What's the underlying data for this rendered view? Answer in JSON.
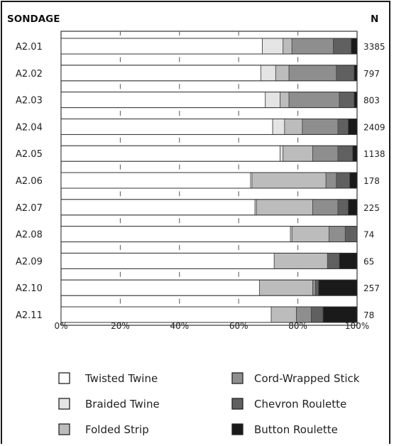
{
  "chart_data": {
    "type": "bar",
    "stacked": "percent",
    "orientation": "horizontal",
    "category_header": "SONDAGE",
    "total_header": "N",
    "categories": [
      "A2.01",
      "A2.02",
      "A2.03",
      "A2.04",
      "A2.05",
      "A2.06",
      "A2.07",
      "A2.08",
      "A2.09",
      "A2.10",
      "A2.11"
    ],
    "totals": [
      "3385",
      "797",
      "803",
      "2409",
      "1138",
      "178",
      "225",
      "74",
      "65",
      "257",
      "78"
    ],
    "series": [
      {
        "name": "Twisted Twine",
        "color": "#ffffff",
        "values": [
          68,
          67.5,
          69,
          71.5,
          74,
          64,
          65.5,
          77.5,
          72,
          67,
          71
        ]
      },
      {
        "name": "Braided Twine",
        "color": "#e4e4e4",
        "values": [
          7,
          5,
          5,
          4,
          1,
          0.5,
          0.5,
          0.5,
          0,
          0,
          0
        ]
      },
      {
        "name": "Folded Strip",
        "color": "#bcbcbc",
        "values": [
          3,
          4.5,
          3,
          6,
          10,
          25,
          19,
          12.5,
          18,
          18,
          8.5
        ]
      },
      {
        "name": "Cord-Wrapped Stick",
        "color": "#8e8e8e",
        "values": [
          14,
          16,
          17,
          12,
          8.5,
          3.5,
          8.5,
          5.5,
          0,
          1,
          5
        ]
      },
      {
        "name": "Chevron Roulette",
        "color": "#606060",
        "values": [
          6,
          6,
          5,
          3.5,
          5,
          4.5,
          3.5,
          4,
          4,
          1,
          4
        ]
      },
      {
        "name": "Button Roulette",
        "color": "#1a1a1a",
        "values": [
          2,
          1,
          1,
          3,
          1.5,
          2.5,
          3,
          0,
          6,
          13,
          11.5
        ]
      }
    ],
    "xticks": [
      "0%",
      "20%",
      "40%",
      "60%",
      "80%",
      "100%"
    ],
    "xlim": [
      0,
      100
    ],
    "legend_position": "bottom",
    "grid": false
  }
}
